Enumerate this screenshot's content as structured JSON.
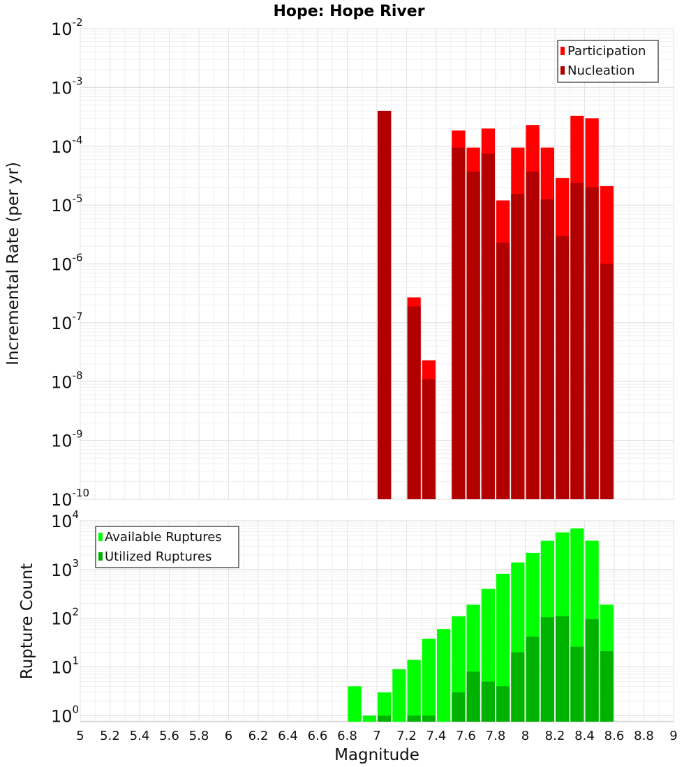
{
  "chart_data": [
    {
      "type": "bar",
      "title": "Hope: Hope River",
      "xlabel": "Magnitude",
      "ylabel": "Incremental Rate (per yr)",
      "yscale": "log",
      "ylim": [
        1e-10,
        0.01
      ],
      "xlim": [
        5,
        9
      ],
      "grid": true,
      "legend_position": "top-right",
      "bar_width": 0.1,
      "colors": {
        "Participation": "#ff0000",
        "Nucleation": "#b20000"
      },
      "series": [
        {
          "name": "Participation",
          "x": [
            7.05,
            7.25,
            7.35,
            7.55,
            7.65,
            7.75,
            7.85,
            7.95,
            8.05,
            8.15,
            8.25,
            8.35,
            8.45,
            8.55
          ],
          "values": [
            0.0004,
            2.7e-07,
            2.3e-08,
            0.000185,
            9.5e-05,
            0.0002,
            1.2e-05,
            9.5e-05,
            0.00023,
            9.5e-05,
            2.9e-05,
            0.00033,
            0.0003,
            2.1e-05
          ]
        },
        {
          "name": "Nucleation",
          "x": [
            7.05,
            7.25,
            7.35,
            7.55,
            7.65,
            7.75,
            7.85,
            7.95,
            8.05,
            8.15,
            8.25,
            8.35,
            8.45,
            8.55
          ],
          "values": [
            0.0004,
            1.9e-07,
            1.1e-08,
            9.5e-05,
            3.7e-05,
            7.5e-05,
            2.3e-06,
            1.55e-05,
            3.7e-05,
            1.25e-05,
            3e-06,
            2.4e-05,
            2e-05,
            1e-06
          ]
        }
      ]
    },
    {
      "type": "bar",
      "xlabel": "Magnitude",
      "ylabel": "Rupture Count",
      "yscale": "log",
      "ylim": [
        0.75,
        10000
      ],
      "xlim": [
        5,
        9
      ],
      "grid": true,
      "legend_position": "top-left",
      "bar_width": 0.1,
      "x_ticks": [
        "5",
        "5.2",
        "5.4",
        "5.6",
        "5.8",
        "6",
        "6.2",
        "6.4",
        "6.6",
        "6.8",
        "7",
        "7.2",
        "7.4",
        "7.6",
        "7.8",
        "8",
        "8.2",
        "8.4",
        "8.6",
        "8.8",
        "9"
      ],
      "colors": {
        "Available Ruptures": "#00ff00",
        "Utilized Ruptures": "#00b200"
      },
      "series": [
        {
          "name": "Available Ruptures",
          "x": [
            6.85,
            6.95,
            7.05,
            7.15,
            7.25,
            7.35,
            7.45,
            7.55,
            7.65,
            7.75,
            7.85,
            7.95,
            8.05,
            8.15,
            8.25,
            8.35,
            8.45,
            8.55
          ],
          "values": [
            4,
            1,
            3,
            9,
            14,
            38,
            60,
            110,
            190,
            400,
            820,
            1400,
            2200,
            3900,
            5800,
            7000,
            3900,
            190
          ]
        },
        {
          "name": "Utilized Ruptures",
          "x": [
            7.05,
            7.25,
            7.35,
            7.55,
            7.65,
            7.75,
            7.85,
            7.95,
            8.05,
            8.15,
            8.25,
            8.35,
            8.45,
            8.55
          ],
          "values": [
            1,
            1,
            1,
            3,
            8,
            5,
            4,
            20,
            42,
            105,
            110,
            26,
            95,
            21
          ]
        }
      ]
    }
  ]
}
